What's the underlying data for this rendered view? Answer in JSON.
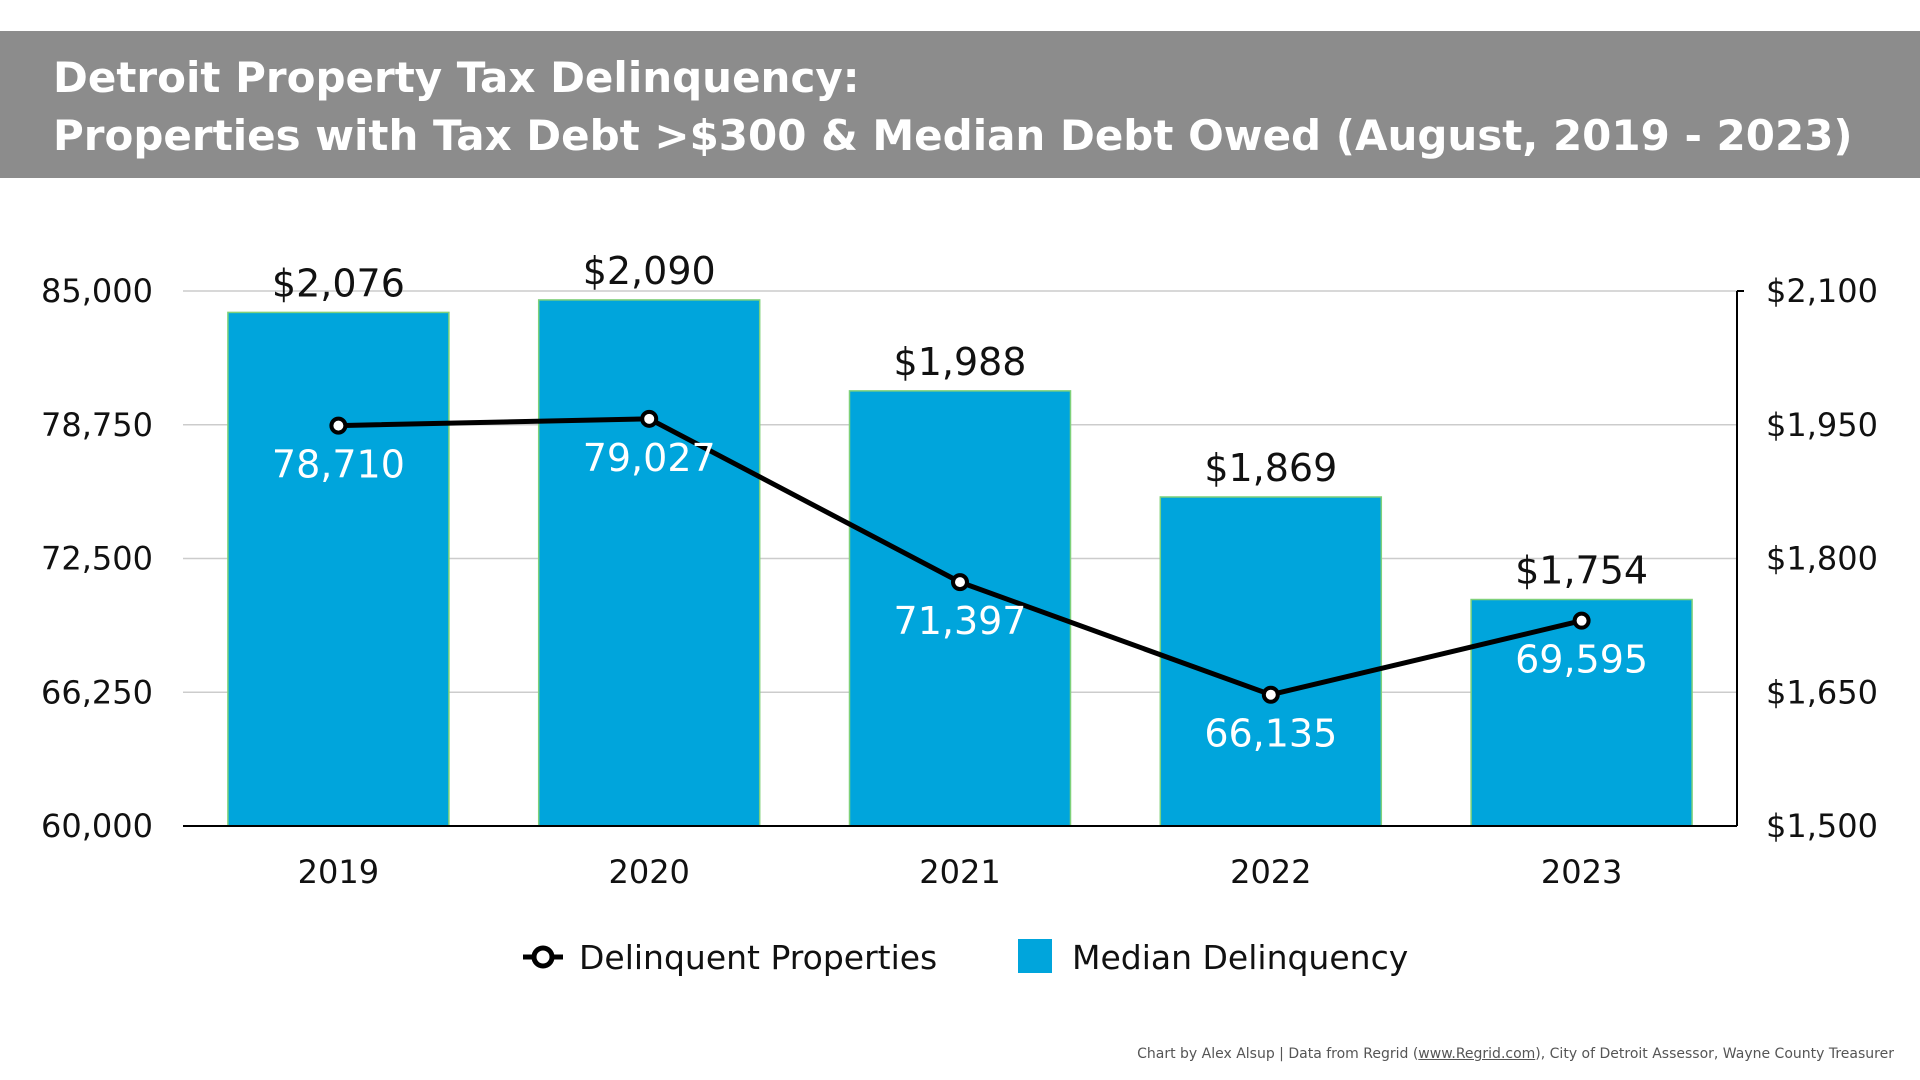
{
  "title": {
    "line1": "Detroit Property Tax Delinquency:",
    "line2": "Properties with Tax Debt >$300 & Median Debt Owed (August, 2019 - 2023)"
  },
  "credit": {
    "prefix": "Chart by Alex Alsup | Data from Regrid (",
    "link": "www.Regrid.com",
    "suffix": "), City of Detroit Assessor, Wayne County Treasurer"
  },
  "colors": {
    "title_bg": "#8c8c8c",
    "bar": "#00a5dc",
    "bar_edge": "#7fd17a",
    "line": "#000000",
    "grid": "#cccccc"
  },
  "chart_data": {
    "type": "bar",
    "categories": [
      "2019",
      "2020",
      "2021",
      "2022",
      "2023"
    ],
    "series": [
      {
        "name": "Median Delinquency",
        "type": "bar",
        "axis": "right",
        "values": [
          2076,
          2090,
          1988,
          1869,
          1754
        ],
        "labels": [
          "$2,076",
          "$2,090",
          "$1,988",
          "$1,869",
          "$1,754"
        ]
      },
      {
        "name": "Delinquent Properties",
        "type": "line",
        "axis": "left",
        "values": [
          78710,
          79027,
          71397,
          66135,
          69595
        ],
        "labels": [
          "78,710",
          "79,027",
          "71,397",
          "66,135",
          "69,595"
        ]
      }
    ],
    "left_axis": {
      "ylim": [
        60000,
        85000
      ],
      "ticks": [
        60000,
        66250,
        72500,
        78750,
        85000
      ],
      "tick_labels": [
        "60,000",
        "66,250",
        "72,500",
        "78,750",
        "85,000"
      ]
    },
    "right_axis": {
      "ylim": [
        1500,
        2100
      ],
      "ticks": [
        1500,
        1650,
        1800,
        1950,
        2100
      ],
      "tick_labels": [
        "$1,500",
        "$1,650",
        "$1,800",
        "$1,950",
        "$2,100"
      ]
    },
    "grid": true,
    "legend_position": "bottom-center"
  }
}
